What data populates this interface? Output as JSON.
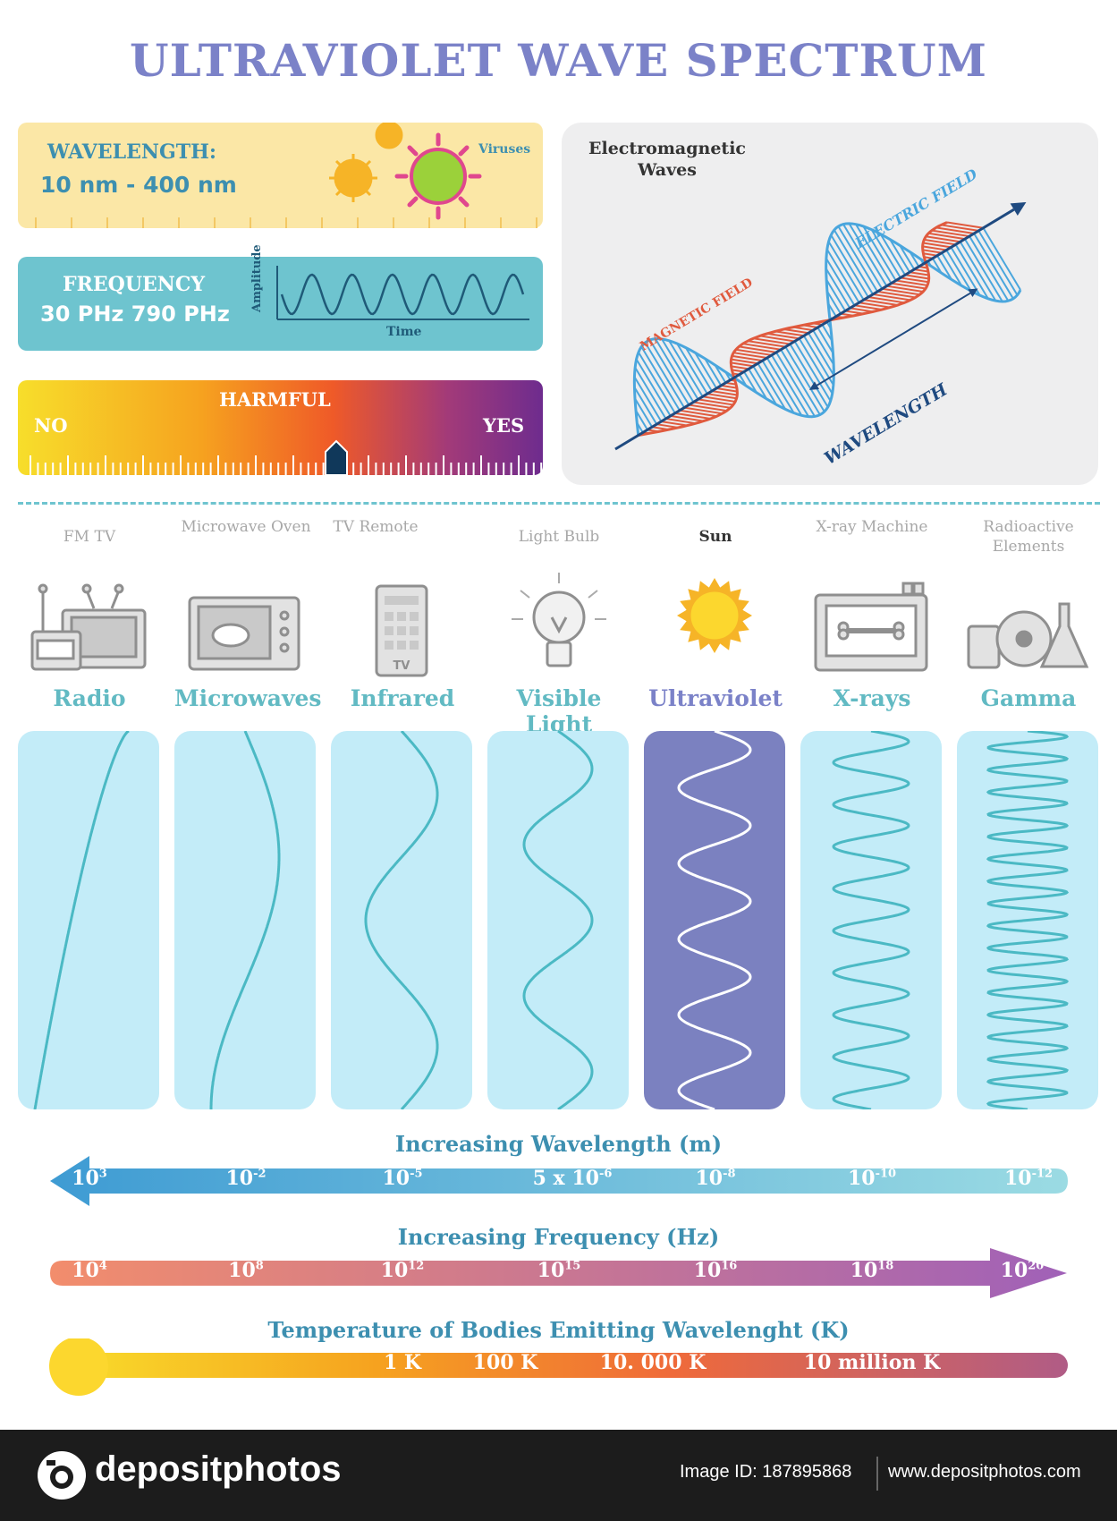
{
  "title": "ULTRAVIOLET WAVE SPECTRUM",
  "wavelength_card": {
    "label": "WAVELENGTH:",
    "value": "10 nm - 400 nm",
    "viruses": "Viruses"
  },
  "frequency_card": {
    "label": "FREQUENCY",
    "value": "30 PHz 790 PHz",
    "amplitude": "Amplitude",
    "time": "Time"
  },
  "harmful_card": {
    "label": "HARMFUL",
    "no": "NO",
    "yes": "YES",
    "level": 0.6
  },
  "em_card": {
    "title_line1": "Electromagnetic",
    "title_line2": "Waves",
    "electric": "ELECTRIC FIELD",
    "magnetic": "MAGNETIC FIELD",
    "wavelength": "WAVELENGTH"
  },
  "sources": [
    {
      "label": "FM  TV",
      "icon": "radio-tv-icon"
    },
    {
      "label": "Microwave Oven",
      "icon": "microwave-oven-icon"
    },
    {
      "label": "TV Remote",
      "icon": "tv-remote-icon"
    },
    {
      "label": "Light Bulb",
      "icon": "light-bulb-icon"
    },
    {
      "label": "Sun",
      "icon": "sun-icon"
    },
    {
      "label": "X-ray Machine",
      "icon": "xray-machine-icon"
    },
    {
      "label": "Radioactive Elements",
      "icon": "radioactive-icon"
    }
  ],
  "remote_text": "TV",
  "waves": [
    {
      "label": "Radio",
      "highlight": false
    },
    {
      "label": "Microwaves",
      "highlight": false
    },
    {
      "label": "Infrared",
      "highlight": false
    },
    {
      "label": "Visible Light",
      "highlight": false
    },
    {
      "label": "Ultraviolet",
      "highlight": true
    },
    {
      "label": "X-rays",
      "highlight": false
    },
    {
      "label": "Gamma",
      "highlight": false
    }
  ],
  "wavelength_axis": {
    "title": "Increasing Wavelength (m)",
    "ticks": [
      {
        "base": "10",
        "exp": "3"
      },
      {
        "base": "10",
        "exp": "-2"
      },
      {
        "base": "10",
        "exp": "-5"
      },
      {
        "base": "5 x 10",
        "exp": "-6"
      },
      {
        "base": "10",
        "exp": "-8"
      },
      {
        "base": "10",
        "exp": "-10"
      },
      {
        "base": "10",
        "exp": "-12"
      }
    ]
  },
  "frequency_axis": {
    "title": "Increasing Frequency (Hz)",
    "ticks": [
      {
        "base": "10",
        "exp": "4"
      },
      {
        "base": "10",
        "exp": "8"
      },
      {
        "base": "10",
        "exp": "12"
      },
      {
        "base": "10",
        "exp": "15"
      },
      {
        "base": "10",
        "exp": "16"
      },
      {
        "base": "10",
        "exp": "18"
      },
      {
        "base": "10",
        "exp": "20"
      }
    ]
  },
  "temperature_axis": {
    "title": "Temperature of Bodies Emitting Wavelenght (K)",
    "ticks": [
      "1 K",
      "100 K",
      "10. 000 K",
      "10 million K"
    ]
  },
  "footer": {
    "brand": "depositphotos",
    "image_id": "Image ID: 187895868",
    "url": "www.depositphotos.com"
  },
  "colors": {
    "title": "#7b82c8",
    "wave": "#4bb9c4",
    "panel": "#c3ecf8",
    "uv_panel": "#7b81c0"
  }
}
